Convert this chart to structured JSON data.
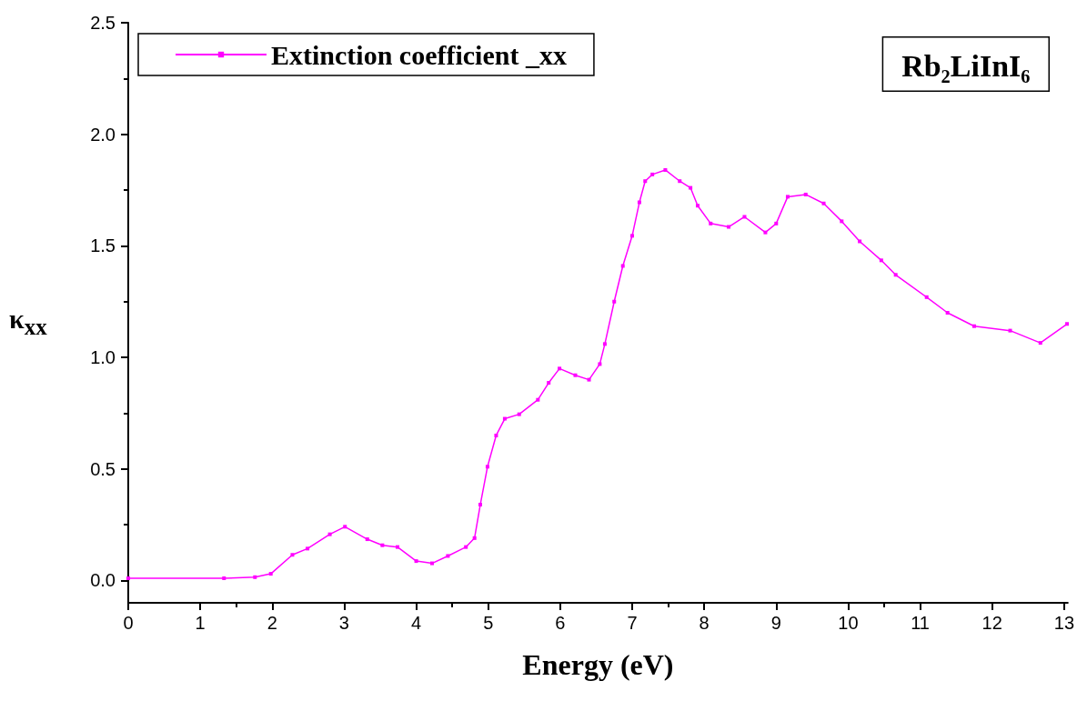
{
  "chart_data": {
    "type": "line",
    "xlabel": "Energy (eV)",
    "ylabel": "κ$_{xx}$",
    "annotations": [
      "Rb₂LiInI₆"
    ],
    "xlim": [
      0,
      13.05
    ],
    "ylim": [
      -0.1,
      2.5
    ],
    "xticks": [
      0,
      1,
      2,
      3,
      4,
      5,
      6,
      7,
      8,
      9,
      10,
      11,
      12,
      13
    ],
    "yticks": [
      {
        "value": 0,
        "label": "0.0"
      },
      0.5,
      {
        "value": 1,
        "label": "1.0"
      },
      1.5,
      {
        "value": 2,
        "label": "2.0"
      },
      2.5
    ],
    "legend": "top left",
    "marker": "square",
    "grid": false,
    "series": [
      {
        "name": "Extinction coefficient _xx",
        "color": "#ff00ff",
        "x": [
          0,
          1.33,
          1.76,
          1.98,
          2.28,
          2.49,
          2.8,
          3.01,
          3.32,
          3.53,
          3.74,
          4.0,
          4.22,
          4.44,
          4.69,
          4.81,
          4.89,
          4.99,
          5.11,
          5.23,
          5.43,
          5.69,
          5.84,
          5.99,
          6.21,
          6.4,
          6.55,
          6.62,
          6.75,
          6.87,
          7.0,
          7.1,
          7.18,
          7.28,
          7.46,
          7.66,
          7.81,
          7.91,
          8.09,
          8.34,
          8.56,
          8.85,
          9.0,
          9.16,
          9.41,
          9.66,
          9.91,
          10.16,
          10.46,
          10.66,
          11.09,
          11.38,
          11.75,
          12.25,
          12.67,
          13.04
        ],
        "values": [
          0.01,
          0.01,
          0.015,
          0.03,
          0.115,
          0.143,
          0.207,
          0.241,
          0.185,
          0.158,
          0.15,
          0.087,
          0.077,
          0.11,
          0.15,
          0.19,
          0.34,
          0.51,
          0.65,
          0.725,
          0.745,
          0.81,
          0.886,
          0.95,
          0.92,
          0.9,
          0.97,
          1.06,
          1.25,
          1.41,
          1.545,
          1.695,
          1.79,
          1.82,
          1.84,
          1.79,
          1.76,
          1.68,
          1.6,
          1.585,
          1.63,
          1.56,
          1.6,
          1.72,
          1.73,
          1.69,
          1.61,
          1.52,
          1.435,
          1.37,
          1.27,
          1.2,
          1.14,
          1.12,
          1.065,
          1.15
        ]
      }
    ]
  }
}
